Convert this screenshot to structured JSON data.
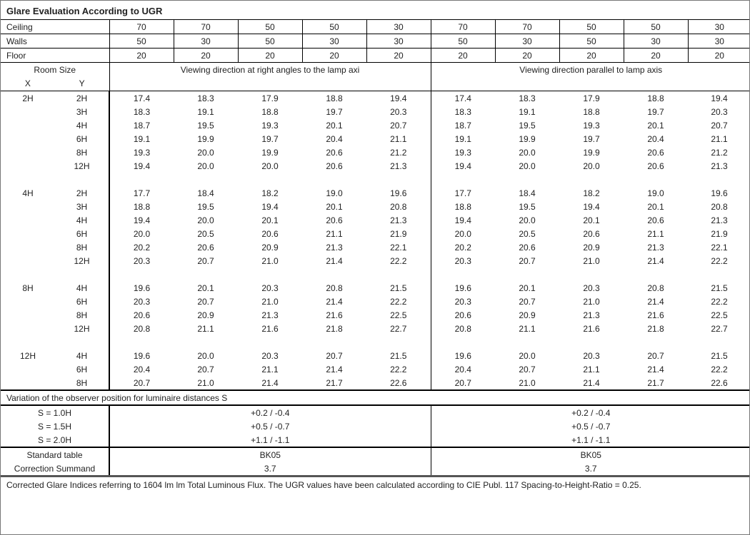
{
  "title": "Glare Evaluation According to UGR",
  "reflectances": [
    {
      "label": "Ceiling",
      "values": [
        "70",
        "70",
        "50",
        "50",
        "30",
        "70",
        "70",
        "50",
        "50",
        "30"
      ]
    },
    {
      "label": "Walls",
      "values": [
        "50",
        "30",
        "50",
        "30",
        "30",
        "50",
        "30",
        "50",
        "30",
        "30"
      ]
    },
    {
      "label": "Floor",
      "values": [
        "20",
        "20",
        "20",
        "20",
        "20",
        "20",
        "20",
        "20",
        "20",
        "20"
      ]
    }
  ],
  "header": {
    "room_size": "Room Size",
    "x": "X",
    "y": "Y",
    "direction_right_angles": "Viewing direction at right angles to the lamp axi",
    "direction_parallel": "Viewing direction parallel to lamp axis"
  },
  "groups": [
    {
      "x": "2H",
      "rows": [
        {
          "y": "2H",
          "right_angles": [
            "17.4",
            "18.3",
            "17.9",
            "18.8",
            "19.4"
          ],
          "parallel": [
            "17.4",
            "18.3",
            "17.9",
            "18.8",
            "19.4"
          ]
        },
        {
          "y": "3H",
          "right_angles": [
            "18.3",
            "19.1",
            "18.8",
            "19.7",
            "20.3"
          ],
          "parallel": [
            "18.3",
            "19.1",
            "18.8",
            "19.7",
            "20.3"
          ]
        },
        {
          "y": "4H",
          "right_angles": [
            "18.7",
            "19.5",
            "19.3",
            "20.1",
            "20.7"
          ],
          "parallel": [
            "18.7",
            "19.5",
            "19.3",
            "20.1",
            "20.7"
          ]
        },
        {
          "y": "6H",
          "right_angles": [
            "19.1",
            "19.9",
            "19.7",
            "20.4",
            "21.1"
          ],
          "parallel": [
            "19.1",
            "19.9",
            "19.7",
            "20.4",
            "21.1"
          ]
        },
        {
          "y": "8H",
          "right_angles": [
            "19.3",
            "20.0",
            "19.9",
            "20.6",
            "21.2"
          ],
          "parallel": [
            "19.3",
            "20.0",
            "19.9",
            "20.6",
            "21.2"
          ]
        },
        {
          "y": "12H",
          "right_angles": [
            "19.4",
            "20.0",
            "20.0",
            "20.6",
            "21.3"
          ],
          "parallel": [
            "19.4",
            "20.0",
            "20.0",
            "20.6",
            "21.3"
          ]
        }
      ]
    },
    {
      "x": "4H",
      "rows": [
        {
          "y": "2H",
          "right_angles": [
            "17.7",
            "18.4",
            "18.2",
            "19.0",
            "19.6"
          ],
          "parallel": [
            "17.7",
            "18.4",
            "18.2",
            "19.0",
            "19.6"
          ]
        },
        {
          "y": "3H",
          "right_angles": [
            "18.8",
            "19.5",
            "19.4",
            "20.1",
            "20.8"
          ],
          "parallel": [
            "18.8",
            "19.5",
            "19.4",
            "20.1",
            "20.8"
          ]
        },
        {
          "y": "4H",
          "right_angles": [
            "19.4",
            "20.0",
            "20.1",
            "20.6",
            "21.3"
          ],
          "parallel": [
            "19.4",
            "20.0",
            "20.1",
            "20.6",
            "21.3"
          ]
        },
        {
          "y": "6H",
          "right_angles": [
            "20.0",
            "20.5",
            "20.6",
            "21.1",
            "21.9"
          ],
          "parallel": [
            "20.0",
            "20.5",
            "20.6",
            "21.1",
            "21.9"
          ]
        },
        {
          "y": "8H",
          "right_angles": [
            "20.2",
            "20.6",
            "20.9",
            "21.3",
            "22.1"
          ],
          "parallel": [
            "20.2",
            "20.6",
            "20.9",
            "21.3",
            "22.1"
          ]
        },
        {
          "y": "12H",
          "right_angles": [
            "20.3",
            "20.7",
            "21.0",
            "21.4",
            "22.2"
          ],
          "parallel": [
            "20.3",
            "20.7",
            "21.0",
            "21.4",
            "22.2"
          ]
        }
      ]
    },
    {
      "x": "8H",
      "rows": [
        {
          "y": "4H",
          "right_angles": [
            "19.6",
            "20.1",
            "20.3",
            "20.8",
            "21.5"
          ],
          "parallel": [
            "19.6",
            "20.1",
            "20.3",
            "20.8",
            "21.5"
          ]
        },
        {
          "y": "6H",
          "right_angles": [
            "20.3",
            "20.7",
            "21.0",
            "21.4",
            "22.2"
          ],
          "parallel": [
            "20.3",
            "20.7",
            "21.0",
            "21.4",
            "22.2"
          ]
        },
        {
          "y": "8H",
          "right_angles": [
            "20.6",
            "20.9",
            "21.3",
            "21.6",
            "22.5"
          ],
          "parallel": [
            "20.6",
            "20.9",
            "21.3",
            "21.6",
            "22.5"
          ]
        },
        {
          "y": "12H",
          "right_angles": [
            "20.8",
            "21.1",
            "21.6",
            "21.8",
            "22.7"
          ],
          "parallel": [
            "20.8",
            "21.1",
            "21.6",
            "21.8",
            "22.7"
          ]
        }
      ]
    },
    {
      "x": "12H",
      "rows": [
        {
          "y": "4H",
          "right_angles": [
            "19.6",
            "20.0",
            "20.3",
            "20.7",
            "21.5"
          ],
          "parallel": [
            "19.6",
            "20.0",
            "20.3",
            "20.7",
            "21.5"
          ]
        },
        {
          "y": "6H",
          "right_angles": [
            "20.4",
            "20.7",
            "21.1",
            "21.4",
            "22.2"
          ],
          "parallel": [
            "20.4",
            "20.7",
            "21.1",
            "21.4",
            "22.2"
          ]
        },
        {
          "y": "8H",
          "right_angles": [
            "20.7",
            "21.0",
            "21.4",
            "21.7",
            "22.6"
          ],
          "parallel": [
            "20.7",
            "21.0",
            "21.4",
            "21.7",
            "22.6"
          ]
        }
      ]
    }
  ],
  "variation": {
    "title": "Variation of the observer position for luminaire distances S",
    "rows": [
      {
        "label": "S = 1.0H",
        "right_angles": "+0.2 / -0.4",
        "parallel": "+0.2 / -0.4"
      },
      {
        "label": "S = 1.5H",
        "right_angles": "+0.5 / -0.7",
        "parallel": "+0.5 / -0.7"
      },
      {
        "label": "S = 2.0H",
        "right_angles": "+1.1 / -1.1",
        "parallel": "+1.1 / -1.1"
      }
    ]
  },
  "standard": [
    {
      "label": "Standard table",
      "right_angles": "BK05",
      "parallel": "BK05"
    },
    {
      "label": "Correction Summand",
      "right_angles": "3.7",
      "parallel": "3.7"
    }
  ],
  "footer": "Corrected Glare Indices referring to 1604 lm lm Total Luminous Flux. The UGR values have been calculated according to CIE Publ. 117    Spacing-to-Height-Ratio = 0.25."
}
